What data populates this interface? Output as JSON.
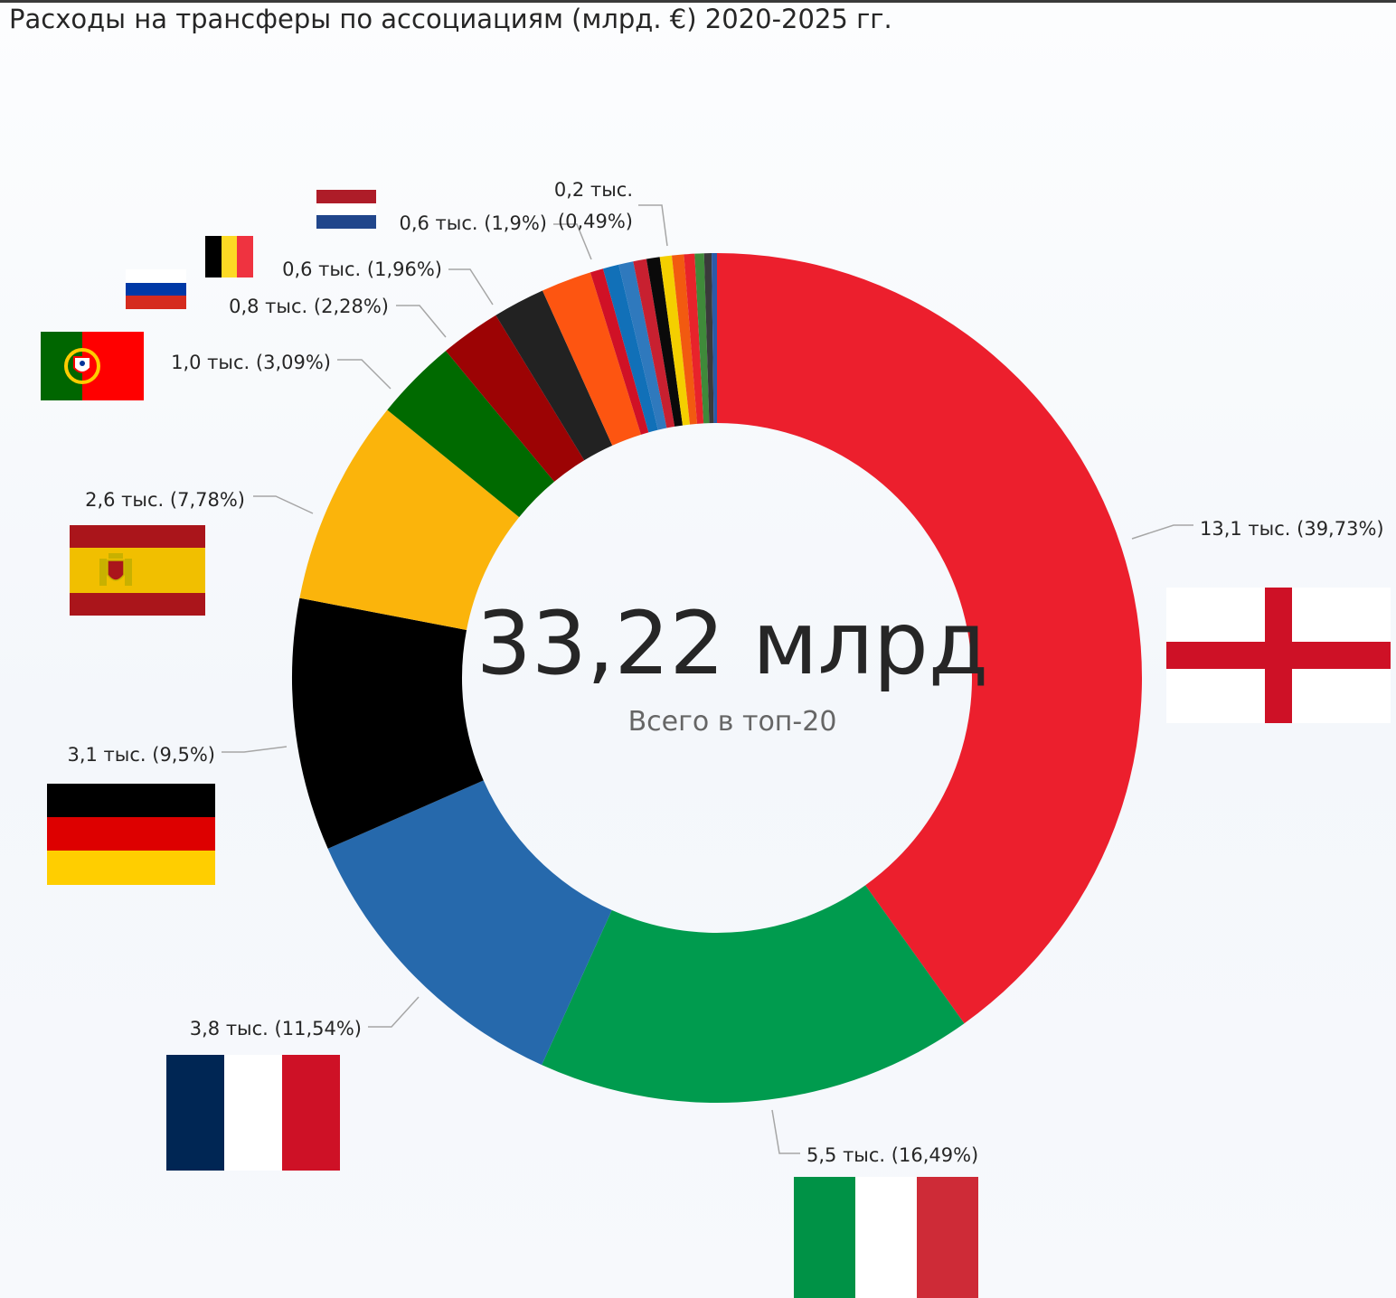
{
  "chart_data": {
    "type": "pie",
    "donut": true,
    "title": "Расходы на трансферы по ассоциациям (млрд. €) 2020-2025 гг.",
    "center_value": "33,22 млрд",
    "center_caption": "Всего в топ-20",
    "legend": "none",
    "slices": [
      {
        "country": "England",
        "flag": "england-flag",
        "value": 13.1,
        "percent": 39.73,
        "label": "13,1 тыс. (39,73%)",
        "color": "#ec1f2d"
      },
      {
        "country": "Italy",
        "flag": "italy-flag",
        "value": 5.5,
        "percent": 16.49,
        "label": "5,5 тыс. (16,49%)",
        "color": "#009b4e"
      },
      {
        "country": "France",
        "flag": "france-flag",
        "value": 3.8,
        "percent": 11.54,
        "label": "3,8 тыс. (11,54%)",
        "color": "#2669ac"
      },
      {
        "country": "Germany",
        "flag": "germany-flag",
        "value": 3.1,
        "percent": 9.5,
        "label": "3,1 тыс. (9,5%)",
        "color": "#000000"
      },
      {
        "country": "Spain",
        "flag": "spain-flag",
        "value": 2.6,
        "percent": 7.78,
        "label": "2,6 тыс. (7,78%)",
        "color": "#fbb40b"
      },
      {
        "country": "Portugal",
        "flag": "portugal-flag",
        "value": 1.0,
        "percent": 3.09,
        "label": "1,0 тыс. (3,09%)",
        "color": "#006a00"
      },
      {
        "country": "Russia",
        "flag": "russia-flag",
        "value": 0.8,
        "percent": 2.28,
        "label": "0,8 тыс. (2,28%)",
        "color": "#9c0304"
      },
      {
        "country": "Belgium",
        "flag": "belgium-flag",
        "value": 0.6,
        "percent": 1.96,
        "label": "0,6 тыс. (1,96%)",
        "color": "#222222"
      },
      {
        "country": "Netherlands",
        "flag": "netherlands-flag",
        "value": 0.6,
        "percent": 1.9,
        "label": "0,6 тыс. (1,9%)",
        "color": "#fd5511"
      },
      {
        "country": "",
        "value": 0.2,
        "percent": 0.49,
        "label": "0,2 тыс. (0,49%)",
        "color": "#d01126"
      },
      {
        "country": "",
        "percent": 0.6,
        "label": "",
        "color": "#1170b8"
      },
      {
        "country": "",
        "percent": 0.55,
        "label": "",
        "color": "#2f79bd"
      },
      {
        "country": "",
        "percent": 0.5,
        "label": "",
        "color": "#c82030"
      },
      {
        "country": "",
        "percent": 0.5,
        "label": "",
        "color": "#0a0a0a"
      },
      {
        "country": "",
        "percent": 0.45,
        "label": "",
        "color": "#f4cf00"
      },
      {
        "country": "",
        "percent": 0.45,
        "label": "",
        "color": "#f25a10"
      },
      {
        "country": "",
        "percent": 0.4,
        "label": "",
        "color": "#e8232b"
      },
      {
        "country": "",
        "percent": 0.35,
        "label": "",
        "color": "#3f8a3a"
      },
      {
        "country": "",
        "percent": 0.28,
        "label": "",
        "color": "#3a3a3a"
      },
      {
        "country": "",
        "percent": 0.2,
        "label": "",
        "color": "#2a5aa8"
      }
    ]
  }
}
